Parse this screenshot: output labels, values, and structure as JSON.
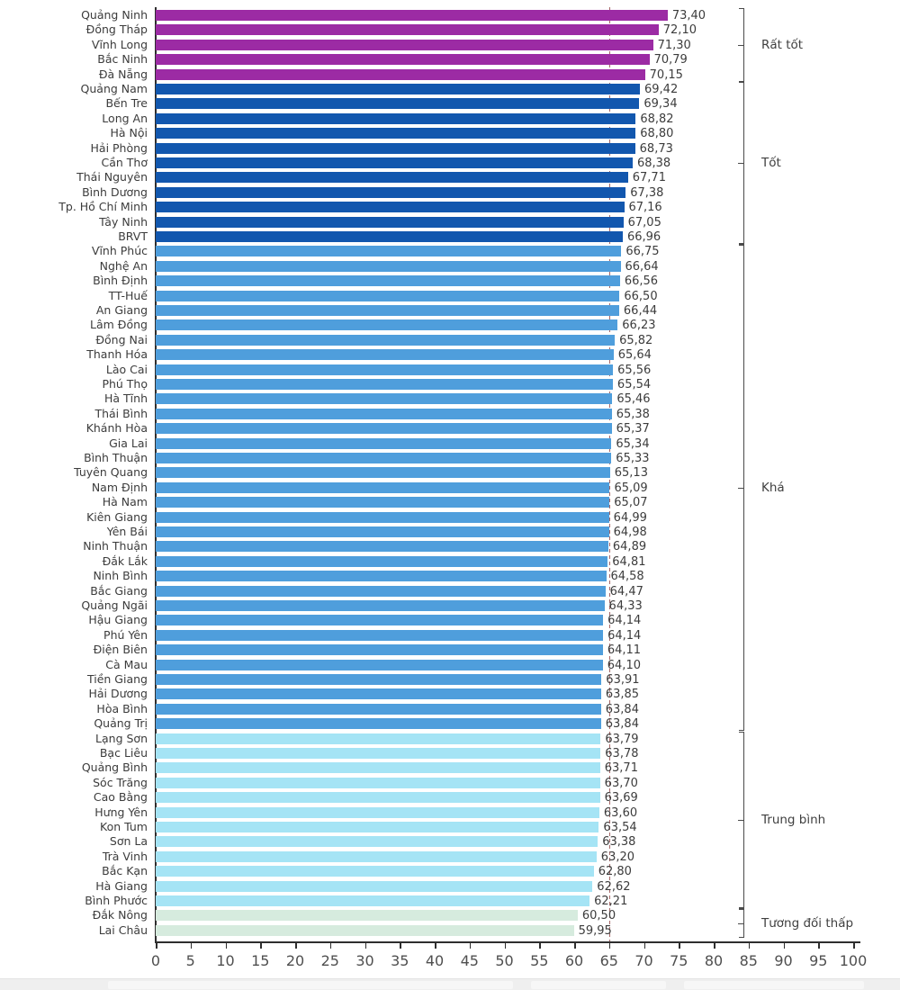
{
  "chart_data": {
    "type": "bar",
    "orientation": "horizontal",
    "title": "",
    "xlabel": "",
    "ylabel": "",
    "xlim": [
      0,
      100
    ],
    "grid": false,
    "x_ticks": [
      0,
      5,
      10,
      15,
      20,
      25,
      30,
      35,
      40,
      45,
      50,
      55,
      60,
      65,
      70,
      75,
      80,
      85,
      90,
      95,
      100
    ],
    "reference_line": {
      "value": 65,
      "style": "dashed",
      "color": "#a56565"
    },
    "tiers": [
      {
        "label": "Rất tốt",
        "color": "#9C2BA4",
        "count": 5
      },
      {
        "label": "Tốt",
        "color": "#1257AE",
        "count": 11
      },
      {
        "label": "Khá",
        "color": "#4F9EDC",
        "count": 33
      },
      {
        "label": "Trung bình",
        "color": "#A5E4F5",
        "count": 12
      },
      {
        "label": "Tương đối thấp",
        "color": "#D6EBDE",
        "count": 2
      }
    ],
    "provinces": [
      {
        "name": "Quảng Ninh",
        "value": 73.4,
        "display": "73,40",
        "tier": 0
      },
      {
        "name": "Đồng Tháp",
        "value": 72.1,
        "display": "72,10",
        "tier": 0
      },
      {
        "name": "Vĩnh Long",
        "value": 71.3,
        "display": "71,30",
        "tier": 0
      },
      {
        "name": "Bắc Ninh",
        "value": 70.79,
        "display": "70,79",
        "tier": 0
      },
      {
        "name": "Đà Nẵng",
        "value": 70.15,
        "display": "70,15",
        "tier": 0
      },
      {
        "name": "Quảng Nam",
        "value": 69.42,
        "display": "69,42",
        "tier": 1
      },
      {
        "name": "Bến Tre",
        "value": 69.34,
        "display": "69,34",
        "tier": 1
      },
      {
        "name": "Long An",
        "value": 68.82,
        "display": "68,82",
        "tier": 1
      },
      {
        "name": "Hà Nội",
        "value": 68.8,
        "display": "68,80",
        "tier": 1
      },
      {
        "name": "Hải Phòng",
        "value": 68.73,
        "display": "68,73",
        "tier": 1
      },
      {
        "name": "Cần Thơ",
        "value": 68.38,
        "display": "68,38",
        "tier": 1
      },
      {
        "name": "Thái Nguyên",
        "value": 67.71,
        "display": "67,71",
        "tier": 1
      },
      {
        "name": "Bình Dương",
        "value": 67.38,
        "display": "67,38",
        "tier": 1
      },
      {
        "name": "Tp. Hồ Chí Minh",
        "value": 67.16,
        "display": "67,16",
        "tier": 1
      },
      {
        "name": "Tây Ninh",
        "value": 67.05,
        "display": "67,05",
        "tier": 1
      },
      {
        "name": "BRVT",
        "value": 66.96,
        "display": "66,96",
        "tier": 1
      },
      {
        "name": "Vĩnh Phúc",
        "value": 66.75,
        "display": "66,75",
        "tier": 2
      },
      {
        "name": "Nghệ An",
        "value": 66.64,
        "display": "66,64",
        "tier": 2
      },
      {
        "name": "Bình Định",
        "value": 66.56,
        "display": "66,56",
        "tier": 2
      },
      {
        "name": "TT-Huế",
        "value": 66.5,
        "display": "66,50",
        "tier": 2
      },
      {
        "name": "An Giang",
        "value": 66.44,
        "display": "66,44",
        "tier": 2
      },
      {
        "name": "Lâm Đồng",
        "value": 66.23,
        "display": "66,23",
        "tier": 2
      },
      {
        "name": "Đồng Nai",
        "value": 65.82,
        "display": "65,82",
        "tier": 2
      },
      {
        "name": "Thanh Hóa",
        "value": 65.64,
        "display": "65,64",
        "tier": 2
      },
      {
        "name": "Lào Cai",
        "value": 65.56,
        "display": "65,56",
        "tier": 2
      },
      {
        "name": "Phú Thọ",
        "value": 65.54,
        "display": "65,54",
        "tier": 2
      },
      {
        "name": "Hà Tĩnh",
        "value": 65.46,
        "display": "65,46",
        "tier": 2
      },
      {
        "name": "Thái Bình",
        "value": 65.38,
        "display": "65,38",
        "tier": 2
      },
      {
        "name": "Khánh Hòa",
        "value": 65.37,
        "display": "65,37",
        "tier": 2
      },
      {
        "name": "Gia Lai",
        "value": 65.34,
        "display": "65,34",
        "tier": 2
      },
      {
        "name": "Bình Thuận",
        "value": 65.33,
        "display": "65,33",
        "tier": 2
      },
      {
        "name": "Tuyên Quang",
        "value": 65.13,
        "display": "65,13",
        "tier": 2
      },
      {
        "name": "Nam Định",
        "value": 65.09,
        "display": "65,09",
        "tier": 2
      },
      {
        "name": "Hà Nam",
        "value": 65.07,
        "display": "65,07",
        "tier": 2
      },
      {
        "name": "Kiên Giang",
        "value": 64.99,
        "display": "64,99",
        "tier": 2
      },
      {
        "name": "Yên Bái",
        "value": 64.98,
        "display": "64,98",
        "tier": 2
      },
      {
        "name": "Ninh Thuận",
        "value": 64.89,
        "display": "64,89",
        "tier": 2
      },
      {
        "name": "Đắk Lắk",
        "value": 64.81,
        "display": "64,81",
        "tier": 2
      },
      {
        "name": "Ninh Bình",
        "value": 64.58,
        "display": "64,58",
        "tier": 2
      },
      {
        "name": "Bắc Giang",
        "value": 64.47,
        "display": "64,47",
        "tier": 2
      },
      {
        "name": "Quảng Ngãi",
        "value": 64.33,
        "display": "64,33",
        "tier": 2
      },
      {
        "name": "Hậu Giang",
        "value": 64.14,
        "display": "64,14",
        "tier": 2
      },
      {
        "name": "Phú Yên",
        "value": 64.14,
        "display": "64,14",
        "tier": 2
      },
      {
        "name": "Điện Biên",
        "value": 64.11,
        "display": "64,11",
        "tier": 2
      },
      {
        "name": "Cà Mau",
        "value": 64.1,
        "display": "64,10",
        "tier": 2
      },
      {
        "name": "Tiền Giang",
        "value": 63.91,
        "display": "63,91",
        "tier": 2
      },
      {
        "name": "Hải Dương",
        "value": 63.85,
        "display": "63,85",
        "tier": 2
      },
      {
        "name": "Hòa Bình",
        "value": 63.84,
        "display": "63,84",
        "tier": 2
      },
      {
        "name": "Quảng Trị",
        "value": 63.84,
        "display": "63,84",
        "tier": 2
      },
      {
        "name": "Lạng Sơn",
        "value": 63.79,
        "display": "63,79",
        "tier": 3
      },
      {
        "name": "Bạc Liêu",
        "value": 63.78,
        "display": "63,78",
        "tier": 3
      },
      {
        "name": "Quảng Bình",
        "value": 63.71,
        "display": "63,71",
        "tier": 3
      },
      {
        "name": "Sóc Trăng",
        "value": 63.7,
        "display": "63,70",
        "tier": 3
      },
      {
        "name": "Cao Bằng",
        "value": 63.69,
        "display": "63,69",
        "tier": 3
      },
      {
        "name": "Hưng Yên",
        "value": 63.6,
        "display": "63,60",
        "tier": 3
      },
      {
        "name": "Kon Tum",
        "value": 63.54,
        "display": "63,54",
        "tier": 3
      },
      {
        "name": "Sơn La",
        "value": 63.38,
        "display": "63,38",
        "tier": 3
      },
      {
        "name": "Trà Vinh",
        "value": 63.2,
        "display": "63,20",
        "tier": 3
      },
      {
        "name": "Bắc Kạn",
        "value": 62.8,
        "display": "62,80",
        "tier": 3
      },
      {
        "name": "Hà Giang",
        "value": 62.62,
        "display": "62,62",
        "tier": 3
      },
      {
        "name": "Bình Phước",
        "value": 62.21,
        "display": "62,21",
        "tier": 3
      },
      {
        "name": "Đắk Nông",
        "value": 60.5,
        "display": "60,50",
        "tier": 4
      },
      {
        "name": "Lai Châu",
        "value": 59.95,
        "display": "59,95",
        "tier": 4
      }
    ]
  },
  "layout_colors": {
    "axis": "#2e2e2e",
    "text": "#3c3c3c",
    "tick_text": "#4f4f4f",
    "footer_band": "#efefef"
  }
}
